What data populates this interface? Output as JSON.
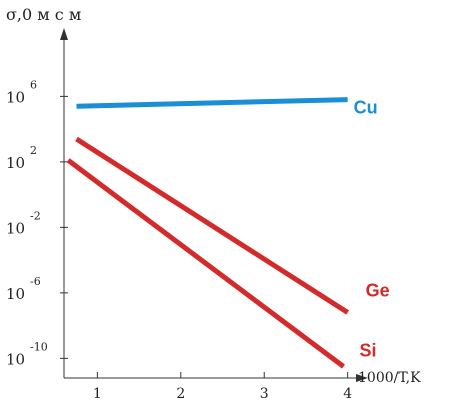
{
  "chart_data": {
    "type": "line",
    "title": "",
    "ylabel": "σ,0 м с м",
    "xlabel": "1000/T,K",
    "y_scale": "log",
    "x_ticks": [
      "1",
      "2",
      "3",
      "4"
    ],
    "y_ticks": [
      {
        "base": "10",
        "exp": "6",
        "value": 6
      },
      {
        "base": "10",
        "exp": "2",
        "value": 2
      },
      {
        "base": "10",
        "exp": "-2",
        "value": -2
      },
      {
        "base": "10",
        "exp": "-6",
        "value": -6
      },
      {
        "base": "10",
        "exp": "-10",
        "value": -10
      }
    ],
    "xlim": [
      0.6,
      4.1
    ],
    "ylim_log10": [
      -11.2,
      9.2
    ],
    "grid": false,
    "series": [
      {
        "name": "Cu",
        "color": "#1a8fd6",
        "x": [
          0.75,
          4.0
        ],
        "y_log10": [
          5.4,
          5.8
        ]
      },
      {
        "name": "Ge",
        "color": "#d42a2a",
        "x": [
          0.75,
          4.0
        ],
        "y_log10": [
          3.4,
          -7.2
        ]
      },
      {
        "name": "Si",
        "color": "#d42a2a",
        "x": [
          0.65,
          3.95
        ],
        "y_log10": [
          2.1,
          -10.5
        ]
      }
    ]
  }
}
